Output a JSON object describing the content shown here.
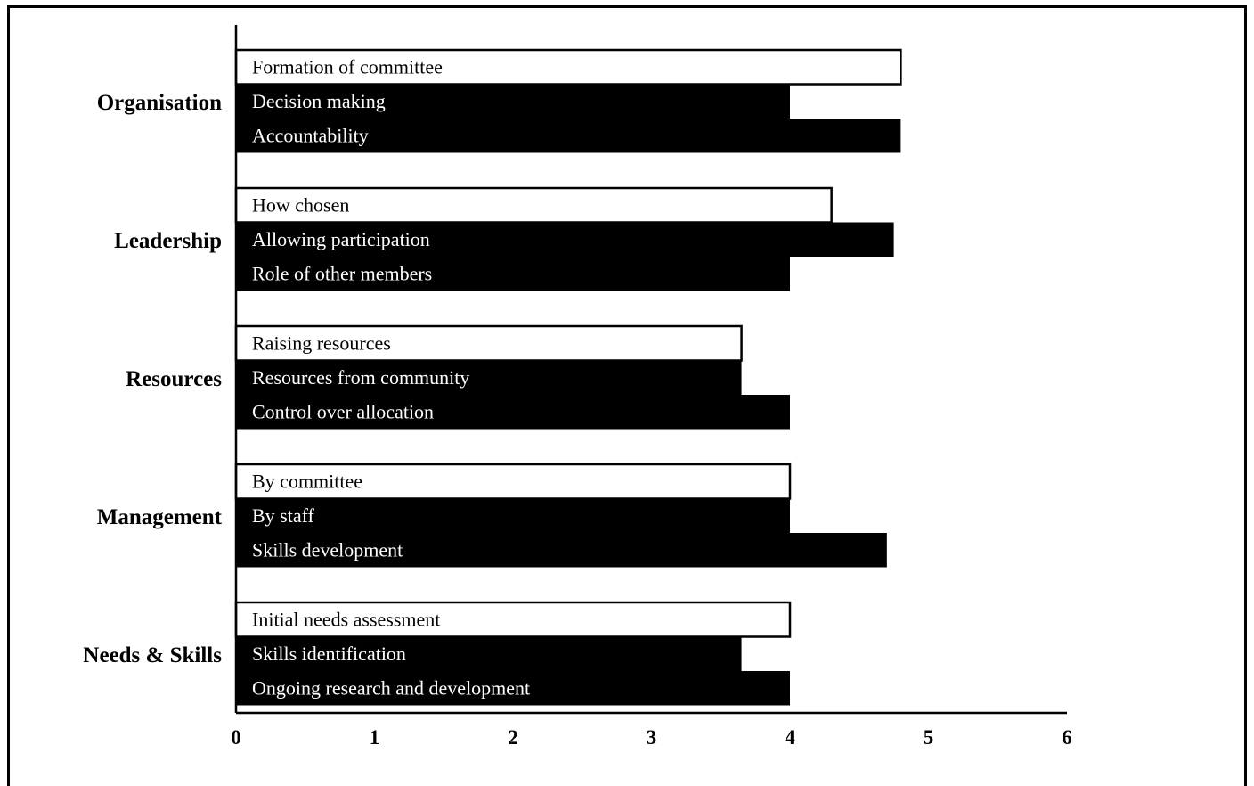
{
  "chart_data": {
    "type": "bar",
    "orientation": "horizontal",
    "xlim": [
      0,
      6
    ],
    "xticks": [
      "0",
      "1",
      "2",
      "3",
      "4",
      "5",
      "6"
    ],
    "grid": false,
    "groups": [
      {
        "category": "Organisation",
        "bars": [
          {
            "label": "Formation of committee",
            "value": 4.8,
            "style": "white"
          },
          {
            "label": "Decision making",
            "value": 4.0,
            "style": "black"
          },
          {
            "label": "Accountability",
            "value": 4.8,
            "style": "black"
          }
        ]
      },
      {
        "category": "Leadership",
        "bars": [
          {
            "label": "How chosen",
            "value": 4.3,
            "style": "white"
          },
          {
            "label": "Allowing participation",
            "value": 4.75,
            "style": "black"
          },
          {
            "label": "Role of other members",
            "value": 4.0,
            "style": "black"
          }
        ]
      },
      {
        "category": "Resources",
        "bars": [
          {
            "label": "Raising resources",
            "value": 3.65,
            "style": "white"
          },
          {
            "label": "Resources from community",
            "value": 3.65,
            "style": "black"
          },
          {
            "label": "Control over allocation",
            "value": 4.0,
            "style": "black"
          }
        ]
      },
      {
        "category": "Management",
        "bars": [
          {
            "label": "By committee",
            "value": 4.0,
            "style": "white"
          },
          {
            "label": "By staff",
            "value": 4.0,
            "style": "black"
          },
          {
            "label": "Skills development",
            "value": 4.7,
            "style": "black"
          }
        ]
      },
      {
        "category": "Needs & Skills",
        "bars": [
          {
            "label": "Initial needs assessment",
            "value": 4.0,
            "style": "white"
          },
          {
            "label": "Skills identification",
            "value": 3.65,
            "style": "black"
          },
          {
            "label": "Ongoing research and development",
            "value": 4.0,
            "style": "black"
          }
        ]
      }
    ]
  }
}
